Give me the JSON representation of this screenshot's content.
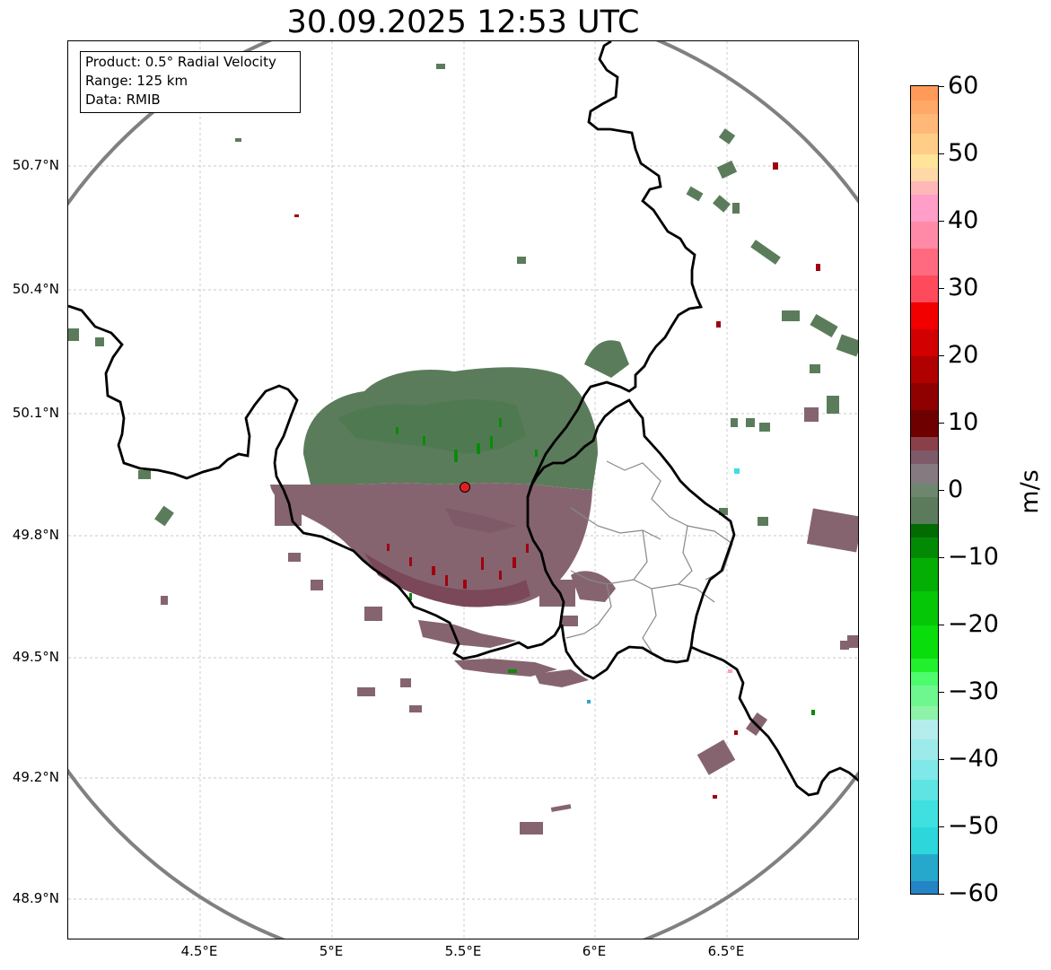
{
  "title": "30.09.2025 12:53 UTC",
  "info": {
    "product": "Product: 0.5° Radial Velocity",
    "range": "Range: 125 km",
    "source": "Data: RMIB"
  },
  "axes": {
    "lon_ticks": [
      "4.5°E",
      "5°E",
      "5.5°E",
      "6°E",
      "6.5°E"
    ],
    "lat_ticks": [
      "50.7°N",
      "50.4°N",
      "50.1°N",
      "49.8°N",
      "49.5°N",
      "49.2°N",
      "48.9°N"
    ]
  },
  "colorbar": {
    "label": "m/s",
    "min": -60,
    "max": 60,
    "ticks": [
      "60",
      "50",
      "40",
      "30",
      "20",
      "10",
      "0",
      "−10",
      "−20",
      "−30",
      "−40",
      "−50",
      "−60"
    ],
    "palette": [
      [
        "#2484c4",
        -60,
        -58
      ],
      [
        "#26a8cc",
        -58,
        -54
      ],
      [
        "#2cd6db",
        -54,
        -50
      ],
      [
        "#3ee0e0",
        -50,
        -46
      ],
      [
        "#5fe4e4",
        -46,
        -43
      ],
      [
        "#80e8e8",
        -43,
        -40
      ],
      [
        "#9deaea",
        -40,
        -37
      ],
      [
        "#b5eded",
        -37,
        -34
      ],
      [
        "#8ef2a8",
        -34,
        -32
      ],
      [
        "#6ef78e",
        -32,
        -29
      ],
      [
        "#4dfc6d",
        -29,
        -27
      ],
      [
        "#22f02c",
        -27,
        -25
      ],
      [
        "#0add0c",
        -25,
        -20
      ],
      [
        "#06c608",
        -20,
        -15
      ],
      [
        "#04ae05",
        -15,
        -10
      ],
      [
        "#038a04",
        -10,
        -7
      ],
      [
        "#026b02",
        -7,
        -5
      ],
      [
        "#5c7a5c",
        -5,
        -1
      ],
      [
        "#6e866e",
        -1,
        1
      ],
      [
        "#857a80",
        1,
        4
      ],
      [
        "#7e5a68",
        4,
        6
      ],
      [
        "#8a4048",
        6,
        8
      ],
      [
        "#6e0000",
        8,
        12
      ],
      [
        "#8f0000",
        12,
        16
      ],
      [
        "#b00000",
        16,
        20
      ],
      [
        "#d20000",
        20,
        24
      ],
      [
        "#f20000",
        24,
        28
      ],
      [
        "#ff4a5c",
        28,
        32
      ],
      [
        "#ff6a80",
        32,
        36
      ],
      [
        "#ff8aa8",
        36,
        40
      ],
      [
        "#ff9ec8",
        40,
        44
      ],
      [
        "#ffb8b8",
        44,
        46
      ],
      [
        "#ffd8a8",
        46,
        48
      ],
      [
        "#ffe49a",
        48,
        50
      ],
      [
        "#ffcd88",
        50,
        53
      ],
      [
        "#ffb878",
        53,
        56
      ],
      [
        "#ffa868",
        56,
        58
      ],
      [
        "#ff9a58",
        58,
        60
      ]
    ]
  },
  "colors": {
    "approach_green": "#5b7c5b",
    "recede_mauve": "#856470",
    "strong_in": "#0a8a0a",
    "strong_out": "#a00010",
    "range_ring": "#808080",
    "radar_site": "#e02020"
  }
}
